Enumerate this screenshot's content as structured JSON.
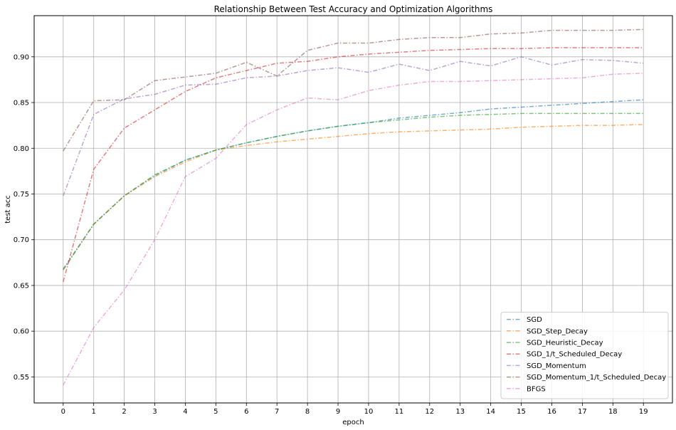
{
  "chart_data": {
    "type": "line",
    "title": "Relationship Between Test Accuracy and Optimization Algorithms",
    "xlabel": "epoch",
    "ylabel": "test acc",
    "x": [
      0,
      1,
      2,
      3,
      4,
      5,
      6,
      7,
      8,
      9,
      10,
      11,
      12,
      13,
      14,
      15,
      16,
      17,
      18,
      19
    ],
    "xticks": [
      "0",
      "1",
      "2",
      "3",
      "4",
      "5",
      "6",
      "7",
      "8",
      "9",
      "10",
      "11",
      "12",
      "13",
      "14",
      "15",
      "16",
      "17",
      "18",
      "19"
    ],
    "yticks": [
      "0.55",
      "0.60",
      "0.65",
      "0.70",
      "0.75",
      "0.80",
      "0.85",
      "0.90"
    ],
    "ytick_values": [
      0.55,
      0.6,
      0.65,
      0.7,
      0.75,
      0.8,
      0.85,
      0.9
    ],
    "xlim": [
      -0.95,
      19.95
    ],
    "ylim": [
      0.5215,
      0.945
    ],
    "grid": true,
    "legend_position": "bottom-right",
    "series": [
      {
        "name": "SGD",
        "color": "#1f77b4",
        "values": [
          0.668,
          0.717,
          0.748,
          0.77,
          0.787,
          0.798,
          0.806,
          0.813,
          0.819,
          0.824,
          0.828,
          0.833,
          0.836,
          0.839,
          0.843,
          0.845,
          0.847,
          0.849,
          0.851,
          0.853
        ]
      },
      {
        "name": "SGD_Step_Decay",
        "color": "#ff7f0e",
        "values": [
          0.667,
          0.717,
          0.748,
          0.769,
          0.785,
          0.798,
          0.803,
          0.807,
          0.81,
          0.813,
          0.816,
          0.818,
          0.819,
          0.82,
          0.821,
          0.823,
          0.824,
          0.825,
          0.825,
          0.826
        ]
      },
      {
        "name": "SGD_Heuristic_Decay",
        "color": "#2ca02c",
        "values": [
          0.667,
          0.717,
          0.748,
          0.771,
          0.787,
          0.798,
          0.806,
          0.813,
          0.819,
          0.824,
          0.828,
          0.831,
          0.834,
          0.836,
          0.837,
          0.838,
          0.838,
          0.838,
          0.838,
          0.838
        ]
      },
      {
        "name": "SGD_1/t_Scheduled_Decay",
        "color": "#d62728",
        "values": [
          0.654,
          0.777,
          0.822,
          0.842,
          0.862,
          0.877,
          0.885,
          0.893,
          0.895,
          0.9,
          0.903,
          0.905,
          0.907,
          0.908,
          0.909,
          0.909,
          0.91,
          0.91,
          0.91,
          0.91
        ]
      },
      {
        "name": "SGD_Momentum",
        "color": "#9467bd",
        "values": [
          0.748,
          0.837,
          0.854,
          0.859,
          0.869,
          0.87,
          0.877,
          0.879,
          0.885,
          0.888,
          0.883,
          0.892,
          0.885,
          0.895,
          0.89,
          0.9,
          0.891,
          0.897,
          0.896,
          0.893
        ]
      },
      {
        "name": "SGD_Momentum_1/t_Scheduled_Decay",
        "color": "#8c564b",
        "values": [
          0.797,
          0.852,
          0.853,
          0.874,
          0.878,
          0.882,
          0.894,
          0.879,
          0.907,
          0.915,
          0.915,
          0.919,
          0.921,
          0.921,
          0.925,
          0.926,
          0.929,
          0.929,
          0.929,
          0.93
        ]
      },
      {
        "name": "BFGS",
        "color": "#e377c2",
        "values": [
          0.541,
          0.604,
          0.645,
          0.7,
          0.769,
          0.789,
          0.826,
          0.842,
          0.855,
          0.853,
          0.863,
          0.869,
          0.873,
          0.873,
          0.874,
          0.875,
          0.876,
          0.877,
          0.881,
          0.882
        ]
      }
    ]
  }
}
